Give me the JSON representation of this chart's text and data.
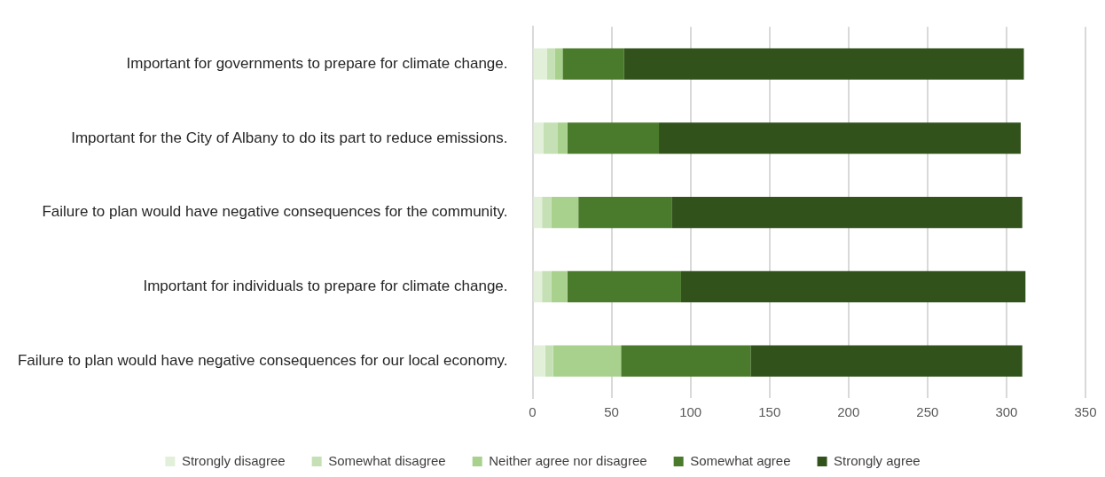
{
  "chart_data": {
    "type": "bar",
    "orientation": "horizontal",
    "stacked": true,
    "categories": [
      "Important for governments to prepare for climate change.",
      "Important for the City of Albany to do its part to reduce emissions.",
      "Failure to plan would have negative consequences for the community.",
      "Important for individuals to prepare for climate change.",
      "Failure to plan would have negative consequences for our local economy."
    ],
    "series": [
      {
        "name": "Strongly disagree",
        "color": "#e2f0d9",
        "values": [
          9,
          7,
          6,
          6,
          8
        ]
      },
      {
        "name": "Somewhat disagree",
        "color": "#c5e0b4",
        "values": [
          5,
          9,
          6,
          6,
          5
        ]
      },
      {
        "name": "Neither agree nor disagree",
        "color": "#a9d18e",
        "values": [
          5,
          6,
          17,
          10,
          43
        ]
      },
      {
        "name": "Somewhat agree",
        "color": "#4a7a2b",
        "values": [
          39,
          58,
          59,
          72,
          82
        ]
      },
      {
        "name": "Strongly agree",
        "color": "#32521c",
        "values": [
          253,
          229,
          222,
          218,
          172
        ]
      }
    ],
    "xlim": [
      0,
      350
    ],
    "xticks": [
      0,
      50,
      100,
      150,
      200,
      250,
      300,
      350
    ],
    "grid": "x",
    "legend": "bottom"
  }
}
